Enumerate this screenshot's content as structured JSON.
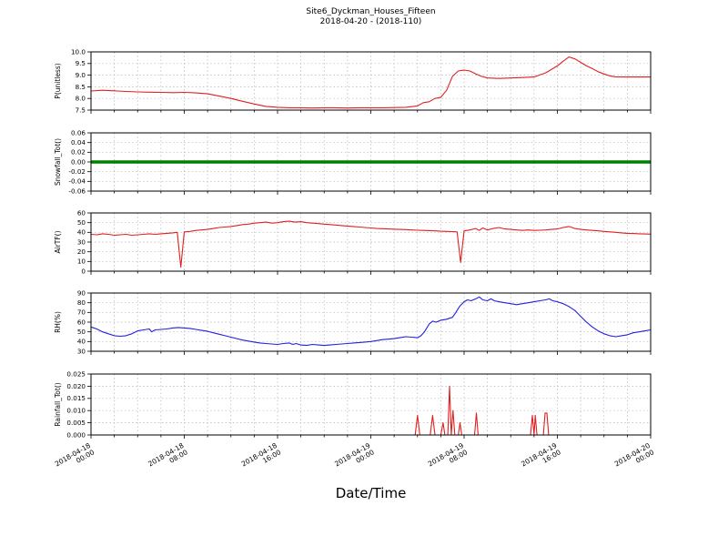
{
  "title": "Site6_Dyckman_Houses_Fifteen",
  "subtitle": "2018-04-20 - (2018-110)",
  "xlabel": "Date/Time",
  "x_axis": {
    "min": 0,
    "max": 48,
    "ticks": [
      {
        "pos": 0,
        "date": "2018-04-18",
        "time": "00:00"
      },
      {
        "pos": 8,
        "date": "2018-04-18",
        "time": "08:00"
      },
      {
        "pos": 16,
        "date": "2018-04-18",
        "time": "16:00"
      },
      {
        "pos": 24,
        "date": "2018-04-19",
        "time": "00:00"
      },
      {
        "pos": 32,
        "date": "2018-04-19",
        "time": "08:00"
      },
      {
        "pos": 40,
        "date": "2018-04-19",
        "time": "16:00"
      },
      {
        "pos": 48,
        "date": "2018-04-20",
        "time": "00:00"
      }
    ]
  },
  "chart_data": [
    {
      "type": "line",
      "ylabel": "P(unitless)",
      "color": "#e02020",
      "linewidth": 1.1,
      "ylim": [
        7.5,
        10.0
      ],
      "yticks": [
        7.5,
        8.0,
        8.5,
        9.0,
        9.5,
        10.0
      ],
      "ydecimals": 1,
      "points": [
        [
          0,
          8.32
        ],
        [
          1,
          8.35
        ],
        [
          2,
          8.33
        ],
        [
          3,
          8.3
        ],
        [
          4,
          8.28
        ],
        [
          5,
          8.27
        ],
        [
          6,
          8.26
        ],
        [
          7,
          8.25
        ],
        [
          8,
          8.26
        ],
        [
          9,
          8.24
        ],
        [
          10,
          8.2
        ],
        [
          11,
          8.1
        ],
        [
          12,
          8.0
        ],
        [
          13,
          7.88
        ],
        [
          14,
          7.76
        ],
        [
          15,
          7.66
        ],
        [
          16,
          7.62
        ],
        [
          17,
          7.6
        ],
        [
          18,
          7.6
        ],
        [
          19,
          7.59
        ],
        [
          20,
          7.6
        ],
        [
          21,
          7.6
        ],
        [
          22,
          7.59
        ],
        [
          23,
          7.6
        ],
        [
          24,
          7.6
        ],
        [
          25,
          7.6
        ],
        [
          26,
          7.61
        ],
        [
          27,
          7.62
        ],
        [
          28,
          7.68
        ],
        [
          28.5,
          7.82
        ],
        [
          29,
          7.86
        ],
        [
          29.5,
          8.0
        ],
        [
          30,
          8.05
        ],
        [
          30.5,
          8.35
        ],
        [
          31,
          8.95
        ],
        [
          31.5,
          9.18
        ],
        [
          32,
          9.22
        ],
        [
          32.5,
          9.18
        ],
        [
          33,
          9.05
        ],
        [
          33.5,
          8.95
        ],
        [
          34,
          8.88
        ],
        [
          35,
          8.86
        ],
        [
          36,
          8.88
        ],
        [
          37,
          8.9
        ],
        [
          38,
          8.92
        ],
        [
          39,
          9.1
        ],
        [
          40,
          9.4
        ],
        [
          40.5,
          9.6
        ],
        [
          41,
          9.78
        ],
        [
          41.5,
          9.7
        ],
        [
          42,
          9.55
        ],
        [
          42.5,
          9.4
        ],
        [
          43,
          9.28
        ],
        [
          43.5,
          9.15
        ],
        [
          44,
          9.05
        ],
        [
          44.5,
          8.97
        ],
        [
          45,
          8.93
        ],
        [
          46,
          8.92
        ],
        [
          47,
          8.92
        ],
        [
          48,
          8.92
        ]
      ]
    },
    {
      "type": "line",
      "ylabel": "Snowfall_Tot()",
      "color": "#008000",
      "linewidth": 3.5,
      "ylim": [
        -0.06,
        0.06
      ],
      "yticks": [
        -0.06,
        -0.04,
        -0.02,
        0.0,
        0.02,
        0.04,
        0.06
      ],
      "ydecimals": 2,
      "points": [
        [
          0,
          0
        ],
        [
          48,
          0
        ]
      ]
    },
    {
      "type": "line",
      "ylabel": "AirTF()",
      "color": "#e02020",
      "linewidth": 1.1,
      "ylim": [
        0,
        60
      ],
      "yticks": [
        0,
        10,
        20,
        30,
        40,
        50,
        60
      ],
      "ydecimals": 0,
      "points": [
        [
          0,
          38
        ],
        [
          0.5,
          37.5
        ],
        [
          1,
          38.5
        ],
        [
          1.5,
          38
        ],
        [
          2,
          37
        ],
        [
          2.5,
          37.5
        ],
        [
          3,
          38
        ],
        [
          3.5,
          37
        ],
        [
          4,
          37.5
        ],
        [
          4.5,
          38
        ],
        [
          5,
          38.5
        ],
        [
          5.5,
          38
        ],
        [
          6,
          38.5
        ],
        [
          6.5,
          39
        ],
        [
          7,
          39.5
        ],
        [
          7.4,
          40
        ],
        [
          7.7,
          4
        ],
        [
          8,
          40.5
        ],
        [
          8.5,
          41
        ],
        [
          9,
          42
        ],
        [
          9.5,
          42.5
        ],
        [
          10,
          43
        ],
        [
          10.5,
          44
        ],
        [
          11,
          45
        ],
        [
          11.5,
          45.5
        ],
        [
          12,
          46
        ],
        [
          12.5,
          47
        ],
        [
          13,
          48
        ],
        [
          13.5,
          48.5
        ],
        [
          14,
          49.5
        ],
        [
          14.5,
          50
        ],
        [
          15,
          50.5
        ],
        [
          15.5,
          49.5
        ],
        [
          16,
          50
        ],
        [
          16.5,
          51
        ],
        [
          17,
          51.5
        ],
        [
          17.5,
          50.5
        ],
        [
          18,
          51
        ],
        [
          18.5,
          50
        ],
        [
          19,
          49.5
        ],
        [
          19.5,
          49
        ],
        [
          20,
          48.5
        ],
        [
          20.5,
          48
        ],
        [
          21,
          47.5
        ],
        [
          21.5,
          47
        ],
        [
          22,
          46.5
        ],
        [
          22.5,
          46
        ],
        [
          23,
          45.5
        ],
        [
          23.5,
          45
        ],
        [
          24,
          44.5
        ],
        [
          24.5,
          44
        ],
        [
          25,
          43.8
        ],
        [
          25.5,
          43.5
        ],
        [
          26,
          43.2
        ],
        [
          26.5,
          43
        ],
        [
          27,
          42.8
        ],
        [
          27.5,
          42.5
        ],
        [
          28,
          42.2
        ],
        [
          28.5,
          42
        ],
        [
          29,
          41.8
        ],
        [
          29.5,
          41.5
        ],
        [
          30,
          41.2
        ],
        [
          30.5,
          41
        ],
        [
          31,
          40.8
        ],
        [
          31.4,
          40.5
        ],
        [
          31.7,
          9
        ],
        [
          32,
          41.5
        ],
        [
          32.5,
          42.5
        ],
        [
          33,
          44
        ],
        [
          33.3,
          42
        ],
        [
          33.6,
          44.5
        ],
        [
          34,
          42.5
        ],
        [
          34.5,
          44
        ],
        [
          35,
          45
        ],
        [
          35.5,
          43.5
        ],
        [
          36,
          43
        ],
        [
          36.5,
          42.5
        ],
        [
          37,
          42
        ],
        [
          37.5,
          42.5
        ],
        [
          38,
          42
        ],
        [
          38.5,
          42.2
        ],
        [
          39,
          42.5
        ],
        [
          39.5,
          43
        ],
        [
          40,
          43.5
        ],
        [
          40.5,
          45
        ],
        [
          41,
          46
        ],
        [
          41.5,
          44
        ],
        [
          42,
          43
        ],
        [
          42.5,
          42.5
        ],
        [
          43,
          42
        ],
        [
          43.5,
          41.5
        ],
        [
          44,
          41
        ],
        [
          44.5,
          40.5
        ],
        [
          45,
          40
        ],
        [
          45.5,
          39.5
        ],
        [
          46,
          39
        ],
        [
          46.5,
          38.8
        ],
        [
          47,
          38.5
        ],
        [
          47.5,
          38.3
        ],
        [
          48,
          38.2
        ]
      ]
    },
    {
      "type": "line",
      "ylabel": "RH(%)",
      "color": "#2020dd",
      "linewidth": 1.1,
      "ylim": [
        30,
        90
      ],
      "yticks": [
        30,
        40,
        50,
        60,
        70,
        80,
        90
      ],
      "ydecimals": 0,
      "points": [
        [
          0,
          55
        ],
        [
          0.5,
          53
        ],
        [
          1,
          50
        ],
        [
          1.5,
          48
        ],
        [
          2,
          46
        ],
        [
          2.5,
          45.5
        ],
        [
          3,
          46
        ],
        [
          3.5,
          48
        ],
        [
          4,
          51
        ],
        [
          4.5,
          52
        ],
        [
          5,
          53
        ],
        [
          5.2,
          50
        ],
        [
          5.5,
          52
        ],
        [
          6,
          52.5
        ],
        [
          6.5,
          53
        ],
        [
          7,
          54
        ],
        [
          7.5,
          54.5
        ],
        [
          8,
          54
        ],
        [
          8.5,
          53.5
        ],
        [
          9,
          52.5
        ],
        [
          9.5,
          51.5
        ],
        [
          10,
          50.5
        ],
        [
          10.5,
          49
        ],
        [
          11,
          47.5
        ],
        [
          11.5,
          46
        ],
        [
          12,
          44.5
        ],
        [
          12.5,
          43
        ],
        [
          13,
          41.5
        ],
        [
          13.5,
          40.5
        ],
        [
          14,
          39.5
        ],
        [
          14.5,
          38.5
        ],
        [
          15,
          38
        ],
        [
          15.5,
          37.5
        ],
        [
          16,
          37
        ],
        [
          16.5,
          38
        ],
        [
          17,
          38.5
        ],
        [
          17.3,
          37
        ],
        [
          17.6,
          38
        ],
        [
          18,
          36.5
        ],
        [
          18.5,
          36
        ],
        [
          19,
          37
        ],
        [
          19.5,
          36.5
        ],
        [
          20,
          36
        ],
        [
          20.5,
          36.5
        ],
        [
          21,
          37
        ],
        [
          21.5,
          37.5
        ],
        [
          22,
          38
        ],
        [
          22.5,
          38.5
        ],
        [
          23,
          39
        ],
        [
          23.5,
          39.5
        ],
        [
          24,
          40
        ],
        [
          24.5,
          41
        ],
        [
          25,
          42
        ],
        [
          25.5,
          42.5
        ],
        [
          26,
          43
        ],
        [
          26.5,
          44
        ],
        [
          27,
          45
        ],
        [
          27.5,
          44.5
        ],
        [
          28,
          44
        ],
        [
          28.3,
          46
        ],
        [
          28.6,
          50
        ],
        [
          29,
          58
        ],
        [
          29.3,
          61
        ],
        [
          29.6,
          60
        ],
        [
          30,
          62
        ],
        [
          30.5,
          63
        ],
        [
          31,
          65
        ],
        [
          31.3,
          70
        ],
        [
          31.6,
          76
        ],
        [
          32,
          81
        ],
        [
          32.3,
          83
        ],
        [
          32.6,
          82
        ],
        [
          33,
          84
        ],
        [
          33.3,
          86
        ],
        [
          33.6,
          83
        ],
        [
          34,
          82
        ],
        [
          34.3,
          84
        ],
        [
          34.6,
          82
        ],
        [
          35,
          81
        ],
        [
          35.5,
          80
        ],
        [
          36,
          79
        ],
        [
          36.5,
          78
        ],
        [
          37,
          79
        ],
        [
          37.5,
          80
        ],
        [
          38,
          81
        ],
        [
          38.5,
          82
        ],
        [
          39,
          83
        ],
        [
          39.3,
          84
        ],
        [
          39.6,
          82
        ],
        [
          40,
          81
        ],
        [
          40.5,
          79
        ],
        [
          41,
          76
        ],
        [
          41.5,
          72
        ],
        [
          42,
          66
        ],
        [
          42.5,
          60
        ],
        [
          43,
          55
        ],
        [
          43.5,
          51
        ],
        [
          44,
          48
        ],
        [
          44.5,
          46
        ],
        [
          45,
          45
        ],
        [
          45.5,
          46
        ],
        [
          46,
          47
        ],
        [
          46.5,
          49
        ],
        [
          47,
          50
        ],
        [
          47.5,
          51
        ],
        [
          48,
          52
        ]
      ]
    },
    {
      "type": "line",
      "ylabel": "Rainfall_Tot()",
      "color": "#e02020",
      "linewidth": 1.1,
      "ylim": [
        0,
        0.025
      ],
      "yticks": [
        0,
        0.005,
        0.01,
        0.015,
        0.02,
        0.025
      ],
      "ydecimals": 3,
      "points": [
        [
          0,
          0
        ],
        [
          27.8,
          0
        ],
        [
          28,
          0.008
        ],
        [
          28.2,
          0
        ],
        [
          29.1,
          0
        ],
        [
          29.3,
          0.008
        ],
        [
          29.5,
          0
        ],
        [
          30,
          0
        ],
        [
          30.2,
          0.005
        ],
        [
          30.35,
          0
        ],
        [
          30.6,
          0
        ],
        [
          30.75,
          0.02
        ],
        [
          30.9,
          0
        ],
        [
          31.05,
          0.01
        ],
        [
          31.2,
          0
        ],
        [
          31.5,
          0
        ],
        [
          31.65,
          0.005
        ],
        [
          31.8,
          0
        ],
        [
          32.9,
          0
        ],
        [
          33.05,
          0.009
        ],
        [
          33.2,
          0
        ],
        [
          37.7,
          0
        ],
        [
          37.85,
          0.008
        ],
        [
          38,
          0
        ],
        [
          38.1,
          0.008
        ],
        [
          38.25,
          0
        ],
        [
          38.8,
          0
        ],
        [
          38.95,
          0.009
        ],
        [
          39.1,
          0.009
        ],
        [
          39.25,
          0
        ],
        [
          48,
          0
        ]
      ]
    }
  ]
}
